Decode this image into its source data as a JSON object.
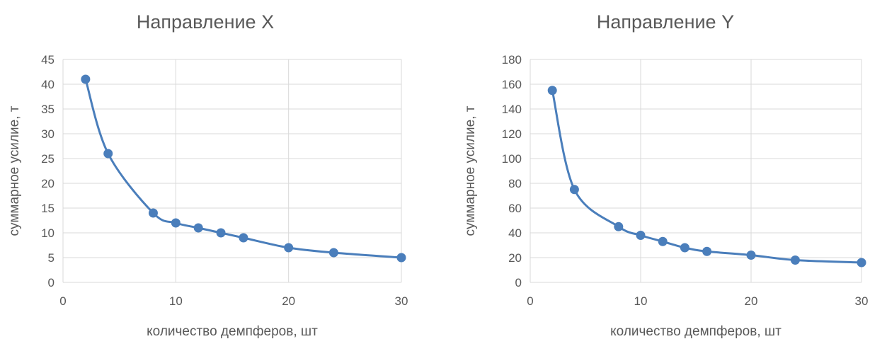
{
  "chart_data": [
    {
      "type": "line",
      "title": "Направление X",
      "xlabel": "количество демпферов, шт",
      "ylabel": "суммарное усилие, т",
      "xlim": [
        0,
        30
      ],
      "ylim": [
        0,
        45
      ],
      "xticks": [
        0,
        10,
        20,
        30
      ],
      "yticks": [
        0,
        5,
        10,
        15,
        20,
        25,
        30,
        35,
        40,
        45
      ],
      "grid": true,
      "color": "#4a7ebb",
      "x": [
        2,
        4,
        8,
        10,
        12,
        14,
        16,
        20,
        24,
        30
      ],
      "y": [
        41,
        26,
        14,
        12,
        11,
        10,
        9,
        7,
        6,
        5
      ]
    },
    {
      "type": "line",
      "title": "Направление Y",
      "xlabel": "количество демпферов, шт",
      "ylabel": "суммарное усилие, т",
      "xlim": [
        0,
        30
      ],
      "ylim": [
        0,
        180
      ],
      "xticks": [
        0,
        10,
        20,
        30
      ],
      "yticks": [
        0,
        20,
        40,
        60,
        80,
        100,
        120,
        140,
        160,
        180
      ],
      "grid": true,
      "color": "#4a7ebb",
      "x": [
        2,
        4,
        8,
        10,
        12,
        14,
        16,
        20,
        24,
        30
      ],
      "y": [
        155,
        75,
        45,
        38,
        33,
        28,
        25,
        22,
        18,
        16
      ]
    }
  ]
}
